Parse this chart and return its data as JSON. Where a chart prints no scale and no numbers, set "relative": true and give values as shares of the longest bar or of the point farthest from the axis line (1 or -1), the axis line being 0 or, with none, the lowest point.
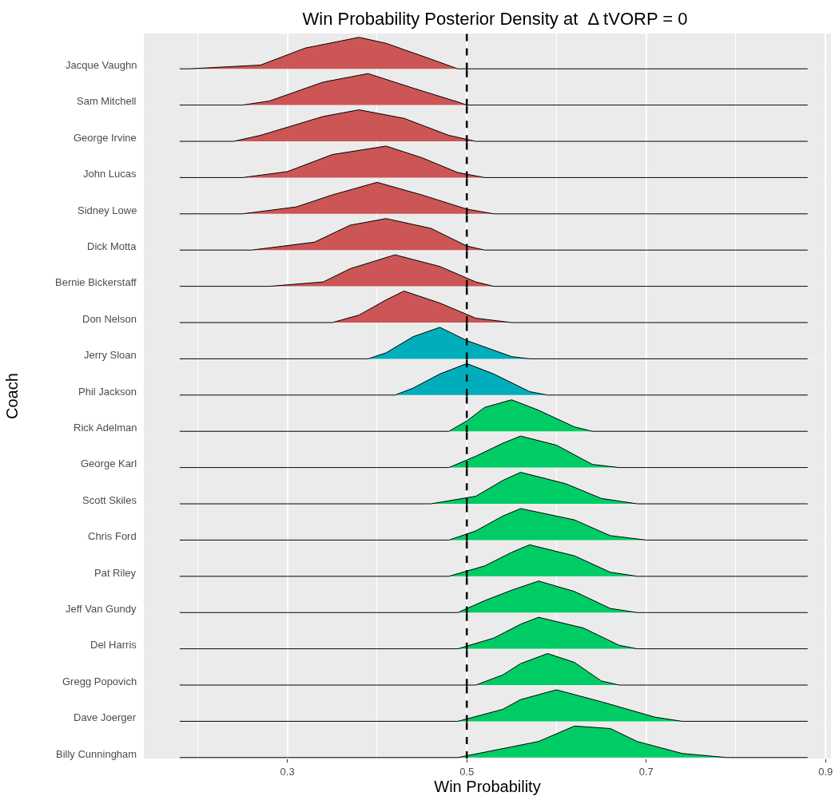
{
  "chart_data": [
    {
      "type": "area",
      "relative": true,
      "title": "Win Probability Posterior Density at  Δ tVORP = 0",
      "annotations": [
        "Coach"
      ],
      "ylabel": "Jacque Vaughn",
      "xlim": [
        0.14,
        0.906
      ],
      "xticks": [
        0.3,
        0.5,
        0.7,
        0.9
      ],
      "tick_labels": false,
      "grid": "x",
      "ref_lines": [
        {
          "axis": "x",
          "value": 0.5,
          "color": "#000000",
          "line_style": "dashed"
        }
      ],
      "series": [
        {
          "color": "#cc5555",
          "x": [
            0.18,
            0.19,
            0.27,
            0.32,
            0.38,
            0.41,
            0.46,
            0.49,
            0.88
          ],
          "values": [
            0,
            0,
            0.12,
            0.66,
            1,
            0.81,
            0.31,
            0,
            0
          ]
        }
      ]
    },
    {
      "type": "area",
      "relative": true,
      "ylabel": "Sam Mitchell",
      "xlim": [
        0.14,
        0.906
      ],
      "xticks": [
        0.3,
        0.5,
        0.7,
        0.9
      ],
      "tick_labels": false,
      "grid": "x",
      "ref_lines": [
        {
          "axis": "x",
          "value": 0.5,
          "color": "#000000",
          "line_style": "dashed"
        }
      ],
      "series": [
        {
          "color": "#cc5555",
          "x": [
            0.18,
            0.25,
            0.28,
            0.34,
            0.39,
            0.44,
            0.49,
            0.5,
            0.88
          ],
          "values": [
            0,
            0,
            0.13,
            0.73,
            1,
            0.54,
            0.1,
            0,
            0
          ]
        }
      ]
    },
    {
      "type": "area",
      "relative": true,
      "ylabel": "George Irvine",
      "xlim": [
        0.14,
        0.906
      ],
      "xticks": [
        0.3,
        0.5,
        0.7,
        0.9
      ],
      "tick_labels": false,
      "grid": "x",
      "ref_lines": [
        {
          "axis": "x",
          "value": 0.5,
          "color": "#000000",
          "line_style": "dashed"
        }
      ],
      "series": [
        {
          "color": "#cc5555",
          "x": [
            0.18,
            0.24,
            0.27,
            0.34,
            0.38,
            0.43,
            0.48,
            0.51,
            0.88
          ],
          "values": [
            0,
            0,
            0.19,
            0.79,
            1,
            0.73,
            0.19,
            0,
            0
          ]
        }
      ]
    },
    {
      "type": "area",
      "relative": true,
      "ylabel": "John Lucas",
      "xlim": [
        0.14,
        0.906
      ],
      "xticks": [
        0.3,
        0.5,
        0.7,
        0.9
      ],
      "tick_labels": false,
      "grid": "x",
      "ref_lines": [
        {
          "axis": "x",
          "value": 0.5,
          "color": "#000000",
          "line_style": "dashed"
        }
      ],
      "series": [
        {
          "color": "#cc5555",
          "x": [
            0.18,
            0.25,
            0.3,
            0.35,
            0.41,
            0.45,
            0.49,
            0.52,
            0.88
          ],
          "values": [
            0,
            0,
            0.19,
            0.73,
            1,
            0.63,
            0.16,
            0,
            0
          ]
        }
      ]
    },
    {
      "type": "area",
      "relative": true,
      "ylabel": "Sidney Lowe",
      "xlim": [
        0.14,
        0.906
      ],
      "xticks": [
        0.3,
        0.5,
        0.7,
        0.9
      ],
      "tick_labels": false,
      "grid": "x",
      "ref_lines": [
        {
          "axis": "x",
          "value": 0.5,
          "color": "#000000",
          "line_style": "dashed"
        }
      ],
      "series": [
        {
          "color": "#cc5555",
          "x": [
            0.18,
            0.25,
            0.31,
            0.35,
            0.4,
            0.45,
            0.5,
            0.53,
            0.88
          ],
          "values": [
            0,
            0,
            0.22,
            0.6,
            1,
            0.6,
            0.15,
            0,
            0
          ]
        }
      ]
    },
    {
      "type": "area",
      "relative": true,
      "ylabel": "Dick Motta",
      "xlim": [
        0.14,
        0.906
      ],
      "xticks": [
        0.3,
        0.5,
        0.7,
        0.9
      ],
      "tick_labels": false,
      "grid": "x",
      "ref_lines": [
        {
          "axis": "x",
          "value": 0.5,
          "color": "#000000",
          "line_style": "dashed"
        }
      ],
      "series": [
        {
          "color": "#cc5555",
          "x": [
            0.18,
            0.26,
            0.33,
            0.37,
            0.41,
            0.46,
            0.5,
            0.52,
            0.88
          ],
          "values": [
            0,
            0,
            0.25,
            0.79,
            1,
            0.69,
            0.13,
            0,
            0
          ]
        }
      ]
    },
    {
      "type": "area",
      "relative": true,
      "ylabel": "Bernie Bickerstaff",
      "xlim": [
        0.14,
        0.906
      ],
      "xticks": [
        0.3,
        0.5,
        0.7,
        0.9
      ],
      "tick_labels": false,
      "grid": "x",
      "ref_lines": [
        {
          "axis": "x",
          "value": 0.5,
          "color": "#000000",
          "line_style": "dashed"
        }
      ],
      "series": [
        {
          "color": "#cc5555",
          "x": [
            0.18,
            0.28,
            0.34,
            0.37,
            0.42,
            0.47,
            0.51,
            0.53,
            0.88
          ],
          "values": [
            0,
            0,
            0.14,
            0.56,
            1,
            0.63,
            0.14,
            0,
            0
          ]
        }
      ]
    },
    {
      "type": "area",
      "relative": true,
      "ylabel": "Don Nelson",
      "xlim": [
        0.14,
        0.906
      ],
      "xticks": [
        0.3,
        0.5,
        0.7,
        0.9
      ],
      "tick_labels": false,
      "grid": "x",
      "ref_lines": [
        {
          "axis": "x",
          "value": 0.5,
          "color": "#000000",
          "line_style": "dashed"
        }
      ],
      "series": [
        {
          "color": "#cc5555",
          "x": [
            0.18,
            0.35,
            0.38,
            0.41,
            0.43,
            0.47,
            0.51,
            0.55,
            0.88
          ],
          "values": [
            0,
            0,
            0.24,
            0.72,
            1,
            0.62,
            0.14,
            0,
            0
          ]
        }
      ]
    },
    {
      "type": "area",
      "relative": true,
      "ylabel": "Jerry Sloan",
      "xlim": [
        0.14,
        0.906
      ],
      "xticks": [
        0.3,
        0.5,
        0.7,
        0.9
      ],
      "tick_labels": false,
      "grid": "x",
      "ref_lines": [
        {
          "axis": "x",
          "value": 0.5,
          "color": "#000000",
          "line_style": "dashed"
        }
      ],
      "series": [
        {
          "color": "#00aebb",
          "x": [
            0.18,
            0.39,
            0.41,
            0.44,
            0.47,
            0.5,
            0.55,
            0.57,
            0.88
          ],
          "values": [
            0,
            0,
            0.19,
            0.7,
            1,
            0.58,
            0.07,
            0,
            0
          ]
        }
      ]
    },
    {
      "type": "area",
      "relative": true,
      "ylabel": "Phil Jackson",
      "xlim": [
        0.14,
        0.906
      ],
      "xticks": [
        0.3,
        0.5,
        0.7,
        0.9
      ],
      "tick_labels": false,
      "grid": "x",
      "ref_lines": [
        {
          "axis": "x",
          "value": 0.5,
          "color": "#000000",
          "line_style": "dashed"
        }
      ],
      "series": [
        {
          "color": "#00aebb",
          "x": [
            0.18,
            0.42,
            0.44,
            0.47,
            0.5,
            0.53,
            0.57,
            0.59,
            0.88
          ],
          "values": [
            0,
            0,
            0.22,
            0.67,
            1,
            0.67,
            0.11,
            0,
            0
          ]
        }
      ]
    },
    {
      "type": "area",
      "relative": true,
      "ylabel": "Rick Adelman",
      "xlim": [
        0.14,
        0.906
      ],
      "xticks": [
        0.3,
        0.5,
        0.7,
        0.9
      ],
      "tick_labels": false,
      "grid": "x",
      "ref_lines": [
        {
          "axis": "x",
          "value": 0.5,
          "color": "#000000",
          "line_style": "dashed"
        }
      ],
      "series": [
        {
          "color": "#00cc66",
          "x": [
            0.18,
            0.48,
            0.5,
            0.52,
            0.55,
            0.58,
            0.62,
            0.64,
            0.88
          ],
          "values": [
            0,
            0,
            0.33,
            0.76,
            1,
            0.67,
            0.14,
            0,
            0
          ]
        }
      ]
    },
    {
      "type": "area",
      "relative": true,
      "ylabel": "George Karl",
      "xlim": [
        0.14,
        0.906
      ],
      "xticks": [
        0.3,
        0.5,
        0.7,
        0.9
      ],
      "tick_labels": false,
      "grid": "x",
      "ref_lines": [
        {
          "axis": "x",
          "value": 0.5,
          "color": "#000000",
          "line_style": "dashed"
        }
      ],
      "series": [
        {
          "color": "#00cc66",
          "x": [
            0.18,
            0.48,
            0.51,
            0.54,
            0.56,
            0.6,
            0.64,
            0.67,
            0.88
          ],
          "values": [
            0,
            0,
            0.36,
            0.77,
            1,
            0.71,
            0.1,
            0,
            0
          ]
        }
      ]
    },
    {
      "type": "area",
      "relative": true,
      "ylabel": "Scott Skiles",
      "xlim": [
        0.14,
        0.906
      ],
      "xticks": [
        0.3,
        0.5,
        0.7,
        0.9
      ],
      "tick_labels": false,
      "grid": "x",
      "ref_lines": [
        {
          "axis": "x",
          "value": 0.5,
          "color": "#000000",
          "line_style": "dashed"
        }
      ],
      "series": [
        {
          "color": "#00cc66",
          "x": [
            0.18,
            0.46,
            0.51,
            0.54,
            0.56,
            0.61,
            0.65,
            0.69,
            0.88
          ],
          "values": [
            0,
            0,
            0.24,
            0.74,
            1,
            0.64,
            0.17,
            0,
            0
          ]
        }
      ]
    },
    {
      "type": "area",
      "relative": true,
      "ylabel": "Chris Ford",
      "xlim": [
        0.14,
        0.906
      ],
      "xticks": [
        0.3,
        0.5,
        0.7,
        0.9
      ],
      "tick_labels": false,
      "grid": "x",
      "ref_lines": [
        {
          "axis": "x",
          "value": 0.5,
          "color": "#000000",
          "line_style": "dashed"
        }
      ],
      "series": [
        {
          "color": "#00cc66",
          "x": [
            0.18,
            0.48,
            0.51,
            0.54,
            0.56,
            0.62,
            0.66,
            0.7,
            0.88
          ],
          "values": [
            0,
            0,
            0.29,
            0.76,
            1,
            0.64,
            0.14,
            0,
            0
          ]
        }
      ]
    },
    {
      "type": "area",
      "relative": true,
      "ylabel": "Pat Riley",
      "xlim": [
        0.14,
        0.906
      ],
      "xticks": [
        0.3,
        0.5,
        0.7,
        0.9
      ],
      "tick_labels": false,
      "grid": "x",
      "ref_lines": [
        {
          "axis": "x",
          "value": 0.5,
          "color": "#000000",
          "line_style": "dashed"
        }
      ],
      "series": [
        {
          "color": "#00cc66",
          "x": [
            0.18,
            0.48,
            0.52,
            0.55,
            0.57,
            0.62,
            0.66,
            0.69,
            0.88
          ],
          "values": [
            0,
            0,
            0.33,
            0.76,
            1,
            0.65,
            0.13,
            0,
            0
          ]
        }
      ]
    },
    {
      "type": "area",
      "relative": true,
      "ylabel": "Jeff Van Gundy",
      "xlim": [
        0.14,
        0.906
      ],
      "xticks": [
        0.3,
        0.5,
        0.7,
        0.9
      ],
      "tick_labels": false,
      "grid": "x",
      "ref_lines": [
        {
          "axis": "x",
          "value": 0.5,
          "color": "#000000",
          "line_style": "dashed"
        }
      ],
      "series": [
        {
          "color": "#00cc66",
          "x": [
            0.18,
            0.49,
            0.52,
            0.55,
            0.58,
            0.62,
            0.66,
            0.69,
            0.88
          ],
          "values": [
            0,
            0,
            0.38,
            0.71,
            1,
            0.67,
            0.13,
            0,
            0
          ]
        }
      ]
    },
    {
      "type": "area",
      "relative": true,
      "ylabel": "Del Harris",
      "xlim": [
        0.14,
        0.906
      ],
      "xticks": [
        0.3,
        0.5,
        0.7,
        0.9
      ],
      "tick_labels": false,
      "grid": "x",
      "ref_lines": [
        {
          "axis": "x",
          "value": 0.5,
          "color": "#000000",
          "line_style": "dashed"
        }
      ],
      "series": [
        {
          "color": "#00cc66",
          "x": [
            0.18,
            0.49,
            0.53,
            0.56,
            0.58,
            0.63,
            0.67,
            0.69,
            0.88
          ],
          "values": [
            0,
            0,
            0.34,
            0.78,
            1,
            0.66,
            0.11,
            0,
            0
          ]
        }
      ]
    },
    {
      "type": "area",
      "relative": true,
      "ylabel": "Gregg Popovich",
      "xlim": [
        0.14,
        0.906
      ],
      "xticks": [
        0.3,
        0.5,
        0.7,
        0.9
      ],
      "tick_labels": false,
      "grid": "x",
      "ref_lines": [
        {
          "axis": "x",
          "value": 0.5,
          "color": "#000000",
          "line_style": "dashed"
        }
      ],
      "series": [
        {
          "color": "#00cc66",
          "x": [
            0.18,
            0.51,
            0.54,
            0.56,
            0.59,
            0.62,
            0.65,
            0.67,
            0.88
          ],
          "values": [
            0,
            0,
            0.32,
            0.68,
            1,
            0.72,
            0.13,
            0,
            0
          ]
        }
      ]
    },
    {
      "type": "area",
      "relative": true,
      "ylabel": "Dave Joerger",
      "xlim": [
        0.14,
        0.906
      ],
      "xticks": [
        0.3,
        0.5,
        0.7,
        0.9
      ],
      "tick_labels": false,
      "grid": "x",
      "ref_lines": [
        {
          "axis": "x",
          "value": 0.5,
          "color": "#000000",
          "line_style": "dashed"
        }
      ],
      "series": [
        {
          "color": "#00cc66",
          "x": [
            0.18,
            0.49,
            0.54,
            0.56,
            0.6,
            0.65,
            0.71,
            0.74,
            0.88
          ],
          "values": [
            0,
            0,
            0.38,
            0.69,
            1,
            0.62,
            0.13,
            0,
            0
          ]
        }
      ]
    },
    {
      "type": "area",
      "relative": true,
      "ylabel": "Billy Cunningham",
      "xlabel": "Win Probability",
      "xlim": [
        0.14,
        0.906
      ],
      "xticks": [
        0.3,
        0.5,
        0.7,
        0.9
      ],
      "tick_labels": "x",
      "grid": "x",
      "ref_lines": [
        {
          "axis": "x",
          "value": 0.5,
          "color": "#000000",
          "line_style": "dashed"
        }
      ],
      "series": [
        {
          "color": "#00cc66",
          "x": [
            0.18,
            0.49,
            0.55,
            0.58,
            0.62,
            0.66,
            0.69,
            0.74,
            0.79,
            0.88
          ],
          "values": [
            0,
            0,
            0.34,
            0.51,
            1,
            0.92,
            0.51,
            0.13,
            0,
            0
          ]
        }
      ]
    }
  ]
}
